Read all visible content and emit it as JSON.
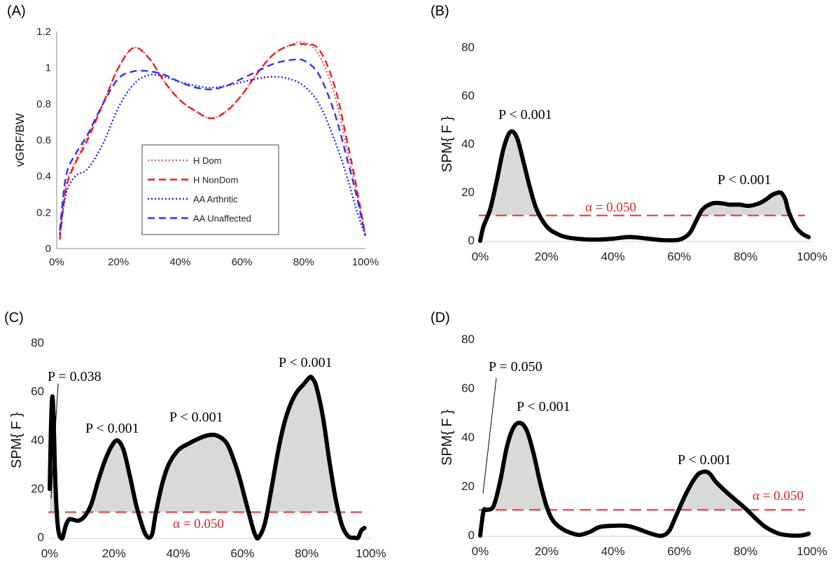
{
  "chart_data": [
    {
      "panel": "(A)",
      "type": "line",
      "ylabel": "vGRF/BW",
      "xlabel": "",
      "ylim": [
        0,
        1.2
      ],
      "yticks": [
        "0",
        "0.2",
        "0.4",
        "0.6",
        "0.8",
        "1",
        "1.2"
      ],
      "xticks": [
        "0%",
        "20%",
        "40%",
        "60%",
        "80%",
        "100%"
      ],
      "legend_position": "center-bottom",
      "series": [
        {
          "name": "H Dom",
          "color": "#ff5a5a",
          "style": "dotted",
          "x": [
            1,
            3,
            6,
            10,
            15,
            20,
            25,
            30,
            35,
            40,
            45,
            50,
            55,
            60,
            65,
            70,
            75,
            80,
            85,
            90,
            94,
            97,
            100
          ],
          "y": [
            0.07,
            0.35,
            0.48,
            0.62,
            0.8,
            1.0,
            1.11,
            1.05,
            0.92,
            0.82,
            0.76,
            0.72,
            0.76,
            0.85,
            0.97,
            1.07,
            1.12,
            1.14,
            1.07,
            0.85,
            0.55,
            0.32,
            0.07
          ]
        },
        {
          "name": "H NonDom",
          "color": "#e81f1f",
          "style": "dashed",
          "x": [
            1,
            3,
            6,
            10,
            15,
            20,
            25,
            30,
            35,
            40,
            45,
            50,
            55,
            60,
            65,
            70,
            75,
            80,
            85,
            90,
            94,
            97,
            100
          ],
          "y": [
            0.05,
            0.33,
            0.47,
            0.6,
            0.8,
            1.0,
            1.11,
            1.05,
            0.92,
            0.82,
            0.76,
            0.72,
            0.76,
            0.85,
            0.97,
            1.07,
            1.12,
            1.13,
            1.1,
            0.9,
            0.6,
            0.35,
            0.07
          ]
        },
        {
          "name": "AA Arthritic",
          "color": "#2020ff",
          "style": "dotted",
          "x": [
            1,
            3,
            6,
            10,
            15,
            20,
            25,
            30,
            35,
            40,
            45,
            50,
            55,
            60,
            65,
            70,
            75,
            80,
            85,
            90,
            94,
            97,
            100
          ],
          "y": [
            0.08,
            0.3,
            0.4,
            0.44,
            0.58,
            0.78,
            0.91,
            0.96,
            0.95,
            0.92,
            0.9,
            0.89,
            0.9,
            0.92,
            0.94,
            0.95,
            0.94,
            0.9,
            0.8,
            0.6,
            0.4,
            0.22,
            0.07
          ]
        },
        {
          "name": "AA Unaffected",
          "color": "#3030ff",
          "style": "dashed",
          "x": [
            1,
            3,
            6,
            10,
            15,
            20,
            25,
            30,
            35,
            40,
            45,
            50,
            55,
            60,
            65,
            70,
            75,
            80,
            85,
            90,
            94,
            97,
            100
          ],
          "y": [
            0.1,
            0.4,
            0.52,
            0.63,
            0.8,
            0.94,
            0.98,
            0.98,
            0.96,
            0.92,
            0.89,
            0.88,
            0.9,
            0.94,
            0.98,
            1.02,
            1.04,
            1.04,
            0.96,
            0.75,
            0.5,
            0.3,
            0.07
          ]
        }
      ]
    },
    {
      "panel": "(B)",
      "type": "area",
      "ylabel": "SPM{ F }",
      "ylim": [
        0,
        80
      ],
      "yticks": [
        "0",
        "20",
        "40",
        "60",
        "80"
      ],
      "xticks": [
        "0%",
        "20%",
        "40%",
        "60%",
        "80%",
        "100%"
      ],
      "threshold": 10.5,
      "threshold_label": "α = 0.050",
      "annotations": [
        "P < 0.001",
        "P < 0.001"
      ],
      "x": [
        0,
        1,
        3,
        5,
        7,
        9,
        11,
        13,
        15,
        17,
        20,
        23,
        26,
        30,
        35,
        40,
        45,
        50,
        55,
        60,
        63,
        65,
        67,
        70,
        73,
        75,
        78,
        81,
        84,
        86,
        88,
        90,
        91,
        92,
        93,
        95,
        97,
        99
      ],
      "y": [
        0,
        6,
        13,
        25,
        38,
        45,
        43,
        33,
        22,
        13,
        6,
        3,
        1.5,
        0.8,
        0.5,
        0.9,
        1.6,
        1,
        0.3,
        0.5,
        3,
        8,
        13,
        15.5,
        15.5,
        15,
        15,
        14.5,
        15.5,
        17,
        19,
        20,
        19.5,
        17,
        12,
        6,
        3,
        1.5
      ]
    },
    {
      "panel": "(C)",
      "type": "area",
      "ylabel": "SPM{ F }",
      "ylim": [
        0,
        80
      ],
      "yticks": [
        "0",
        "20",
        "40",
        "60",
        "80"
      ],
      "xticks": [
        "0%",
        "20%",
        "40%",
        "60%",
        "80%",
        "100%"
      ],
      "threshold": 10.5,
      "threshold_label": "α = 0.050",
      "annotations": [
        "P = 0.038",
        "P < 0.001",
        "P < 0.001",
        "P < 0.001"
      ],
      "x": [
        0,
        0.4,
        0.8,
        1.2,
        1.6,
        2,
        2.5,
        3,
        3.5,
        4,
        5,
        6,
        7,
        9,
        11,
        13,
        15,
        17,
        19,
        21,
        23,
        25,
        27,
        29,
        30,
        31,
        32,
        33,
        35,
        37,
        40,
        43,
        46,
        49,
        52,
        55,
        57,
        59,
        61,
        63,
        64,
        65,
        67,
        69,
        71,
        73,
        75,
        77,
        79,
        81,
        82,
        83,
        85,
        87,
        89,
        91,
        93,
        95,
        96,
        97,
        98
      ],
      "y": [
        20,
        45,
        58,
        50,
        30,
        15,
        5,
        1,
        0,
        0,
        5,
        7.5,
        7.5,
        7,
        9,
        14,
        23,
        31,
        37,
        40,
        36,
        25,
        13,
        4,
        1,
        0,
        2,
        10,
        22,
        30,
        36,
        38.5,
        40.5,
        42,
        42,
        39,
        33,
        25,
        15,
        5,
        1,
        0,
        6,
        20,
        35,
        47,
        55,
        60,
        63,
        66,
        65,
        62,
        50,
        32,
        16,
        5,
        0.5,
        0,
        0,
        3,
        4
      ]
    },
    {
      "panel": "(D)",
      "type": "area",
      "ylabel": "SPM{ F }",
      "ylim": [
        0,
        80
      ],
      "yticks": [
        "0",
        "20",
        "40",
        "60",
        "80"
      ],
      "xticks": [
        "0%",
        "20%",
        "40%",
        "60%",
        "80%",
        "100%"
      ],
      "threshold": 10.5,
      "threshold_label": "α = 0.050",
      "annotations": [
        "P = 0.050",
        "P < 0.001",
        "P < 0.001"
      ],
      "x": [
        0,
        1,
        2,
        4,
        6,
        8,
        10,
        12,
        14,
        16,
        18,
        20,
        22,
        25,
        28,
        30,
        33,
        36,
        40,
        44,
        47,
        50,
        53,
        55,
        57,
        59,
        62,
        65,
        67,
        69,
        71,
        74,
        77,
        80,
        83,
        86,
        90,
        94,
        97,
        99
      ],
      "y": [
        0,
        10,
        10.5,
        12,
        22,
        36,
        44,
        46,
        43,
        34,
        22,
        12,
        6,
        2.5,
        0.8,
        0.3,
        1.5,
        3.5,
        4,
        4,
        3,
        1.5,
        0.2,
        0,
        2,
        8,
        17,
        24,
        26,
        25.5,
        22,
        18,
        14.5,
        11,
        7,
        3.5,
        0.8,
        0,
        0.1,
        0.8
      ]
    }
  ]
}
